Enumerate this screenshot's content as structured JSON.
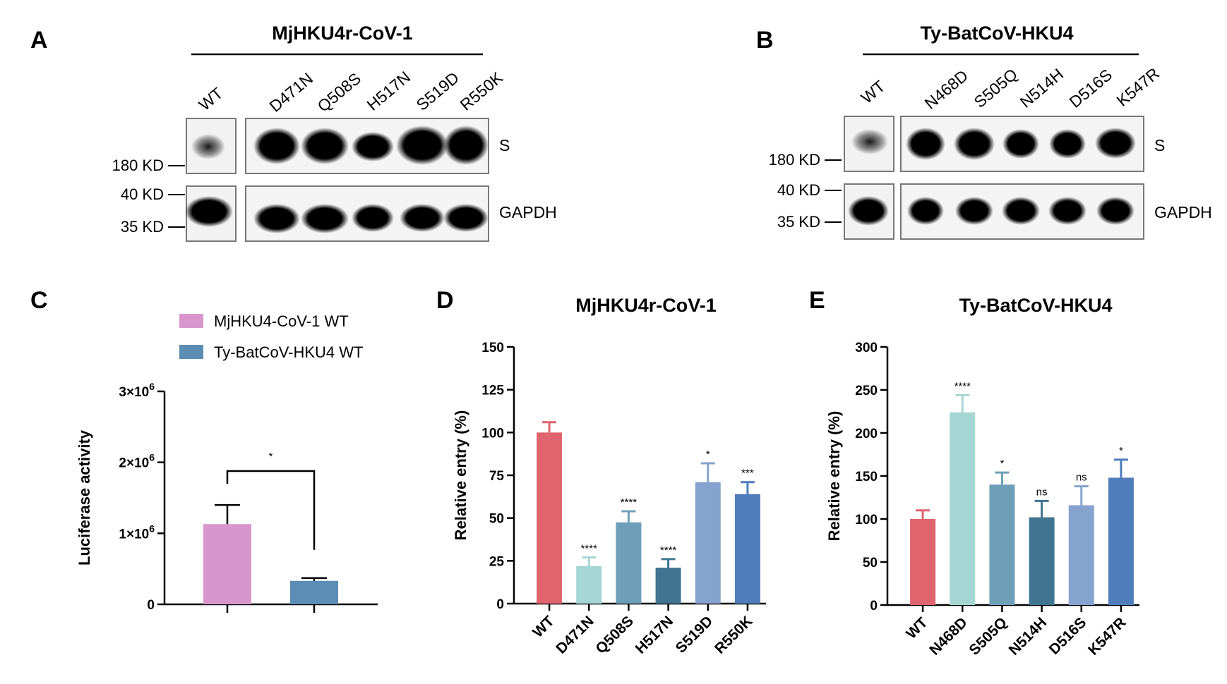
{
  "panels": {
    "A": {
      "label": "A",
      "strain": "MjHKU4r-CoV-1",
      "lanes": [
        "WT",
        "D471N",
        "Q508S",
        "H517N",
        "S519D",
        "R550K"
      ],
      "band_labels": [
        "S",
        "GAPDH"
      ],
      "markers": [
        "180 KD",
        "40 KD",
        "35 KD"
      ]
    },
    "B": {
      "label": "B",
      "strain": "Ty-BatCoV-HKU4",
      "lanes": [
        "WT",
        "N468D",
        "S505Q",
        "N514H",
        "D516S",
        "K547R"
      ],
      "band_labels": [
        "S",
        "GAPDH"
      ],
      "markers": [
        "180 KD",
        "40 KD",
        "35 KD"
      ]
    },
    "C": {
      "label": "C"
    },
    "D": {
      "label": "D"
    },
    "E": {
      "label": "E"
    }
  },
  "colors": {
    "mj_wt": "#d896cc",
    "ty_wt": "#5b8db5",
    "wt": "#e0646e",
    "mut1": "#a6d6d4",
    "mut2": "#6e9fb9",
    "mut3": "#3f7591",
    "mut4": "#86a3cf",
    "mut5": "#4f7dbc"
  },
  "chart_data": [
    {
      "id": "C",
      "type": "bar",
      "title": "",
      "xlabel": "",
      "ylabel": "Luciferase activity",
      "ylim": [
        0,
        3000000
      ],
      "yticks": [
        0,
        1000000,
        2000000,
        3000000
      ],
      "ytick_labels": [
        "0",
        "1×10",
        "2×10",
        "3×10"
      ],
      "ytick_exp": "6",
      "legend": [
        "MjHKU4-CoV-1 WT",
        "Ty-BatCoV-HKU4 WT"
      ],
      "legend_position": "top",
      "values": [
        1130000,
        330000
      ],
      "errors": [
        270000,
        40000
      ],
      "significance": "*"
    },
    {
      "id": "D",
      "type": "bar",
      "title": "MjHKU4r-CoV-1",
      "xlabel": "",
      "ylabel": "Relative entry (%)",
      "ylim": [
        0,
        150
      ],
      "yticks": [
        0,
        25,
        50,
        75,
        100,
        125,
        150
      ],
      "categories": [
        "WT",
        "D471N",
        "Q508S",
        "H517N",
        "S519D",
        "R550K"
      ],
      "values": [
        100,
        22,
        47.5,
        21,
        71,
        64
      ],
      "errors": [
        6,
        5,
        6.5,
        5,
        11,
        7
      ],
      "significance": [
        "",
        "****",
        "****",
        "****",
        "*",
        "***"
      ]
    },
    {
      "id": "E",
      "type": "bar",
      "title": "Ty-BatCoV-HKU4",
      "xlabel": "",
      "ylabel": "Relative entry (%)",
      "ylim": [
        0,
        300
      ],
      "yticks": [
        0,
        50,
        100,
        150,
        200,
        250,
        300
      ],
      "categories": [
        "WT",
        "N468D",
        "S505Q",
        "N514H",
        "D516S",
        "K547R"
      ],
      "values": [
        100,
        224,
        140,
        102,
        116,
        148
      ],
      "errors": [
        10,
        20,
        14,
        19,
        22,
        21
      ],
      "significance": [
        "",
        "****",
        "*",
        "ns",
        "ns",
        "*"
      ]
    }
  ]
}
